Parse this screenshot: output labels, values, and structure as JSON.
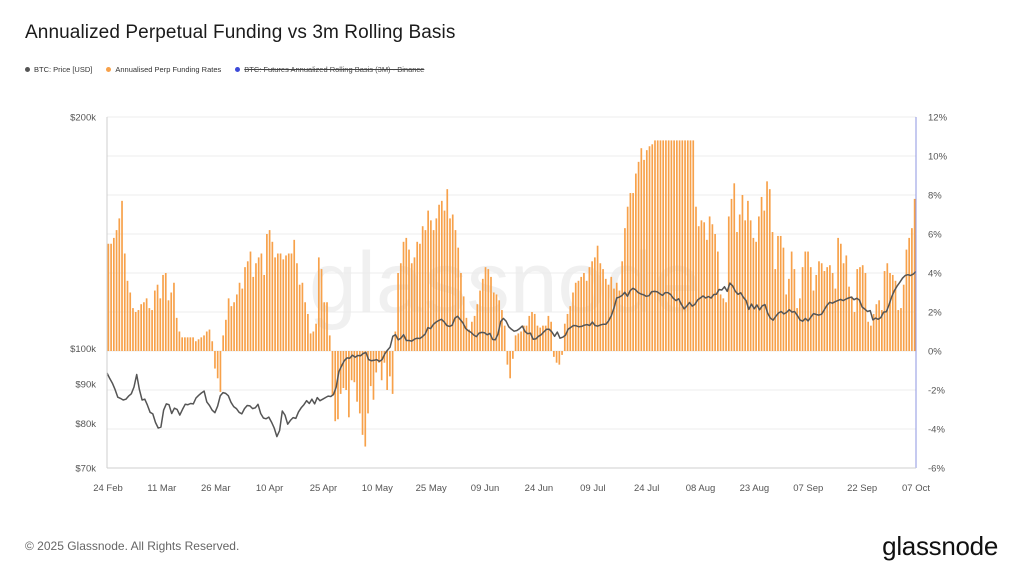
{
  "title": "Annualized Perpetual Funding vs 3m Rolling Basis",
  "legend": [
    {
      "label": "BTC: Price [USD]",
      "color": "#555555",
      "disabled": false
    },
    {
      "label": "Annualised Perp Funding Rates",
      "color": "#f7a14a",
      "disabled": false
    },
    {
      "label": "BTC: Futures Annualized Rolling Basis (3M) - Binance",
      "color": "#3c4ad8",
      "disabled": true
    }
  ],
  "watermark": "glassnode",
  "footer": {
    "copyright": "© 2025 Glassnode. All Rights Reserved.",
    "brand": "glassnode"
  },
  "chart_data": {
    "type": "bar",
    "title": "Annualized Perpetual Funding vs 3m Rolling Basis",
    "x_tick_labels": [
      "24 Feb",
      "11 Mar",
      "26 Mar",
      "10 Apr",
      "25 Apr",
      "10 May",
      "25 May",
      "09 Jun",
      "24 Jun",
      "09 Jul",
      "24 Jul",
      "08 Aug",
      "23 Aug",
      "07 Sep",
      "22 Sep",
      "07 Oct"
    ],
    "y_left": {
      "scale": "log",
      "range": [
        70000,
        200000
      ],
      "tick_values": [
        70000,
        80000,
        90000,
        100000,
        200000
      ],
      "tick_labels": [
        "$70k",
        "$80k",
        "$90k",
        "$100k",
        "$200k"
      ]
    },
    "y_right": {
      "range": [
        -6,
        12
      ],
      "tick_values": [
        -6,
        -4,
        -2,
        0,
        2,
        4,
        6,
        8,
        10,
        12
      ],
      "tick_labels": [
        "-6%",
        "-4%",
        "-2%",
        "0%",
        "2%",
        "4%",
        "6%",
        "8%",
        "10%",
        "12%"
      ]
    },
    "grid": "horizontal",
    "series": [
      {
        "name": "Annualised Perp Funding Rates",
        "type": "bar",
        "axis": "right",
        "color": "#f7a14a",
        "values": [
          5.5,
          5.5,
          5.8,
          6.2,
          6.8,
          7.7,
          5.0,
          3.6,
          3.0,
          2.2,
          2.0,
          2.1,
          2.4,
          2.5,
          2.7,
          2.2,
          2.1,
          3.1,
          3.4,
          2.7,
          3.9,
          4.0,
          2.6,
          3.0,
          3.5,
          1.7,
          1.0,
          0.7,
          0.7,
          0.7,
          0.7,
          0.7,
          0.5,
          0.6,
          0.7,
          0.8,
          1.0,
          1.1,
          0.5,
          -0.9,
          -1.4,
          -2.1,
          0.8,
          1.6,
          2.7,
          2.3,
          2.5,
          2.9,
          3.5,
          3.2,
          4.3,
          4.6,
          5.1,
          3.8,
          4.5,
          4.8,
          5.0,
          3.9,
          6.0,
          6.2,
          5.6,
          4.8,
          5.0,
          5.0,
          4.7,
          4.9,
          5.0,
          5.0,
          5.7,
          4.5,
          3.4,
          3.5,
          2.5,
          1.9,
          0.9,
          1.0,
          1.4,
          4.8,
          4.2,
          2.5,
          2.5,
          0.8,
          -2.3,
          -3.6,
          -3.5,
          -2.2,
          -1.9,
          -2.0,
          -3.4,
          -1.5,
          -1.6,
          -2.6,
          -3.2,
          -4.3,
          -4.9,
          -3.2,
          -1.8,
          -2.5,
          -1.1,
          -0.6,
          -1.5,
          -0.6,
          -2.0,
          -1.3,
          -2.2,
          1.0,
          4.0,
          4.5,
          5.6,
          5.8,
          5.2,
          4.5,
          4.8,
          5.6,
          5.5,
          6.4,
          6.2,
          7.2,
          6.7,
          6.2,
          6.8,
          7.5,
          7.7,
          7.2,
          8.3,
          6.8,
          7.0,
          6.2,
          5.3,
          4.0,
          2.8,
          1.7,
          1.1,
          1.5,
          1.8,
          2.4,
          3.1,
          3.7,
          4.3,
          4.2,
          3.8,
          3.0,
          2.9,
          2.6,
          2.1,
          1.3,
          -0.7,
          -1.4,
          -0.4,
          0.8,
          0.9,
          1.0,
          1.3,
          1.3,
          1.8,
          2.0,
          1.9,
          1.3,
          1.2,
          1.3,
          1.3,
          1.8,
          1.5,
          -0.3,
          -0.6,
          -0.7,
          -0.2,
          1.4,
          1.9,
          2.3,
          3.0,
          3.5,
          3.6,
          3.8,
          4.0,
          3.6,
          4.3,
          4.6,
          4.8,
          5.4,
          4.5,
          4.2,
          3.7,
          3.4,
          3.8,
          3.2,
          3.5,
          3.1,
          4.6,
          6.3,
          7.4,
          8.1,
          8.1,
          9.1,
          9.7,
          10.4,
          9.8,
          10.3,
          10.5,
          10.6,
          10.8,
          10.8,
          10.8,
          10.8,
          10.8,
          10.8,
          10.8,
          10.8,
          10.8,
          10.8,
          10.8,
          10.8,
          10.8,
          10.8,
          10.8,
          7.4,
          6.4,
          6.7,
          6.6,
          5.7,
          6.9,
          6.5,
          6.0,
          5.1,
          2.9,
          2.7,
          2.5,
          6.9,
          7.8,
          8.6,
          6.1,
          7.0,
          8.0,
          6.7,
          7.7,
          6.7,
          5.8,
          5.6,
          6.9,
          7.9,
          7.2,
          8.7,
          8.3,
          6.1,
          4.2,
          5.9,
          5.9,
          5.3,
          2.9,
          3.7,
          5.1,
          4.2,
          2.2,
          2.7,
          4.3,
          5.1,
          5.1,
          4.3,
          3.1,
          3.9,
          4.6,
          4.5,
          4.1,
          4.3,
          4.4,
          4.0,
          3.2,
          5.8,
          5.5,
          4.5,
          4.9,
          3.3,
          2.8,
          2.0,
          4.2,
          4.3,
          4.4,
          4.0,
          1.5,
          1.3,
          1.9,
          2.4,
          2.6,
          2.1,
          4.1,
          4.5,
          4.0,
          3.9,
          3.6,
          2.1,
          2.2,
          3.4,
          5.2,
          5.8,
          6.3,
          7.8
        ]
      },
      {
        "name": "BTC: Price [USD]",
        "type": "line",
        "axis": "left",
        "color": "#555555",
        "values": [
          93000,
          91500,
          90200,
          88500,
          86500,
          86200,
          85800,
          86000,
          86800,
          87400,
          89200,
          92600,
          88500,
          85800,
          86000,
          84500,
          82700,
          82300,
          80200,
          78900,
          79100,
          83200,
          84800,
          84600,
          82400,
          83700,
          83400,
          82000,
          83400,
          84700,
          84600,
          84900,
          84800,
          86300,
          87000,
          87600,
          88100,
          85300,
          84400,
          83200,
          82600,
          84200,
          86900,
          87700,
          87500,
          86900,
          85200,
          84100,
          83600,
          82700,
          82300,
          83600,
          84400,
          84300,
          83600,
          83800,
          84700,
          82400,
          81300,
          81100,
          81500,
          80300,
          78900,
          76900,
          78300,
          83000,
          82000,
          79800,
          80700,
          81400,
          81200,
          82800,
          83800,
          84600,
          85600,
          84900,
          86000,
          84800,
          86400,
          85600,
          86000,
          86400,
          86800,
          86700,
          87200,
          89200,
          93400,
          95000,
          96500,
          97300,
          97200,
          98100,
          97500,
          98000,
          97900,
          98600,
          98900,
          96800,
          96500,
          96600,
          96800,
          96300,
          96800,
          98500,
          99600,
          100500,
          103800,
          104300,
          102700,
          103200,
          104300,
          102500,
          102500,
          102300,
          102900,
          103200,
          103100,
          103700,
          104500,
          106500,
          106200,
          107500,
          108300,
          108800,
          109200,
          108400,
          107200,
          106900,
          107300,
          109600,
          110200,
          109100,
          108000,
          106200,
          105500,
          105000,
          104200,
          103700,
          104800,
          105000,
          104900,
          104300,
          104700,
          102800,
          102700,
          104500,
          108500,
          109500,
          108600,
          106800,
          106000,
          105400,
          105600,
          106200,
          107000,
          105300,
          104600,
          104800,
          102900,
          103000,
          103800,
          104300,
          105200,
          106000,
          106000,
          105100,
          103800,
          105100,
          103200,
          103500,
          104100,
          106000,
          106600,
          107200,
          107100,
          106800,
          106900,
          107300,
          107500,
          107200,
          108300,
          107200,
          107000,
          107400,
          107600,
          107600,
          108700,
          110400,
          113000,
          116400,
          116700,
          117300,
          118400,
          117000,
          119000,
          119800,
          119300,
          118300,
          117800,
          117500,
          117000,
          117200,
          118600,
          118700,
          118600,
          117900,
          117300,
          118300,
          118300,
          117600,
          116300,
          115500,
          116100,
          114200,
          112700,
          113600,
          114800,
          113600,
          114200,
          115700,
          116400,
          117100,
          116400,
          116900,
          116400,
          117600,
          117700,
          119400,
          119200,
          120400,
          118700,
          121700,
          120700,
          118800,
          117700,
          118200,
          116600,
          115500,
          112500,
          114300,
          112700,
          114000,
          112400,
          113700,
          114100,
          111200,
          109600,
          108900,
          110200,
          111300,
          111800,
          111000,
          111500,
          112400,
          111600,
          111800,
          110500,
          109000,
          108600,
          109500,
          108700,
          109900,
          111100,
          110800,
          110600,
          110900,
          112400,
          113900,
          114900,
          114600,
          115100,
          115500,
          115900,
          115500,
          116000,
          116400,
          116700,
          115800,
          116300,
          115700,
          113300,
          112600,
          111800,
          112100,
          109000,
          109600,
          109200,
          109800,
          111600,
          111700,
          114000,
          116800,
          119000,
          120600,
          122000,
          123500,
          124500,
          124800,
          124500,
          125000,
          126000
        ]
      },
      {
        "name": "BTC: Futures Annualized Rolling Basis (3M) - Binance",
        "type": "line",
        "axis": "right",
        "color": "#3c4ad8",
        "hidden": true,
        "values": []
      }
    ],
    "legend": "top-left"
  }
}
